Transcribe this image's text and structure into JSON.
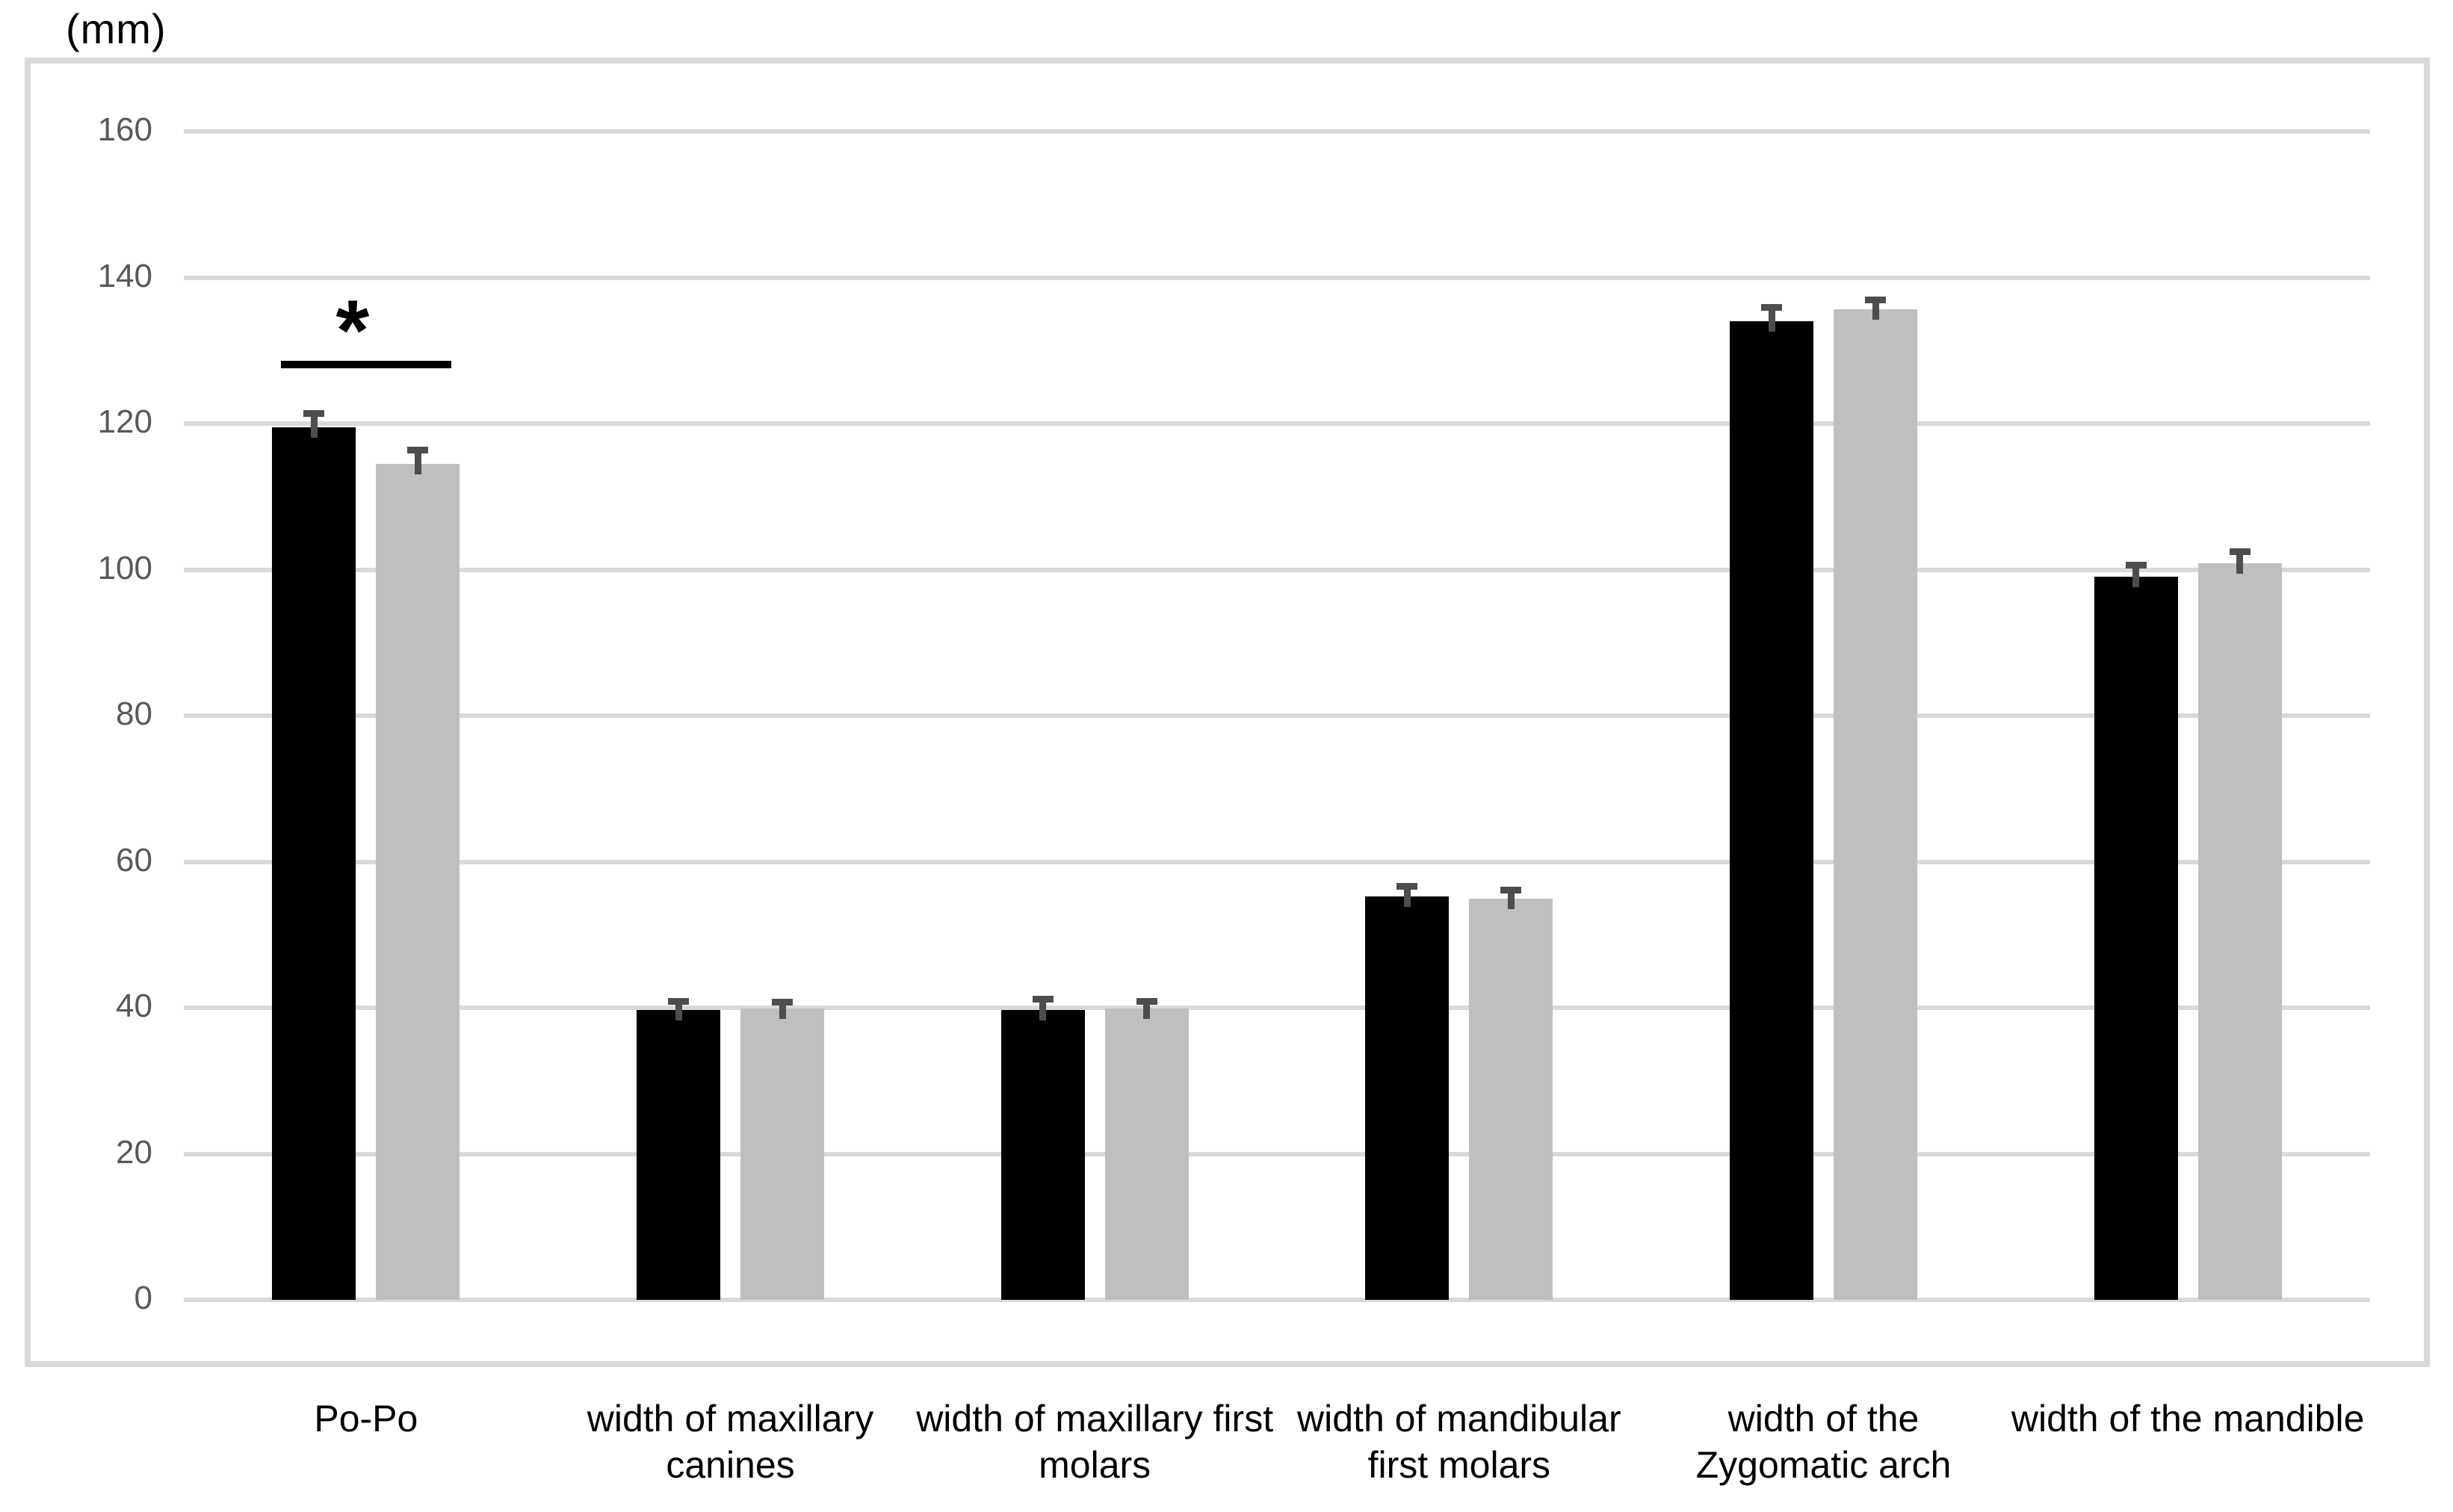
{
  "colors": {
    "black_bar": "#000000",
    "gray_bar": "#BFBFBF",
    "gridline": "#D9D9D9",
    "frame_border": "#D9D9D9",
    "tick_text": "#595959",
    "category_text": "#000000",
    "error_bar": "#4D4D4D",
    "significance": "#000000"
  },
  "chart_data": {
    "type": "bar",
    "title": "",
    "ylabel": "(mm)",
    "xlabel": "",
    "ylim": [
      0,
      160
    ],
    "yticks": [
      0,
      20,
      40,
      60,
      80,
      100,
      120,
      140,
      160
    ],
    "grid": true,
    "legend": "none",
    "error_bars": true,
    "categories": [
      "Po-Po",
      "width of maxillary canines",
      "width of maxillary first molars",
      "width of mandibular first molars",
      "width of the Zygomatic arch",
      "width of the mandible"
    ],
    "series": [
      {
        "name": "black",
        "color": "#000000",
        "values": [
          119.5,
          39.7,
          39.7,
          55.2,
          134.0,
          99.0
        ],
        "errors": [
          1.4,
          0.7,
          1.0,
          1.0,
          1.4,
          1.2
        ]
      },
      {
        "name": "gray",
        "color": "#BFBFBF",
        "values": [
          114.5,
          39.9,
          39.9,
          54.9,
          135.7,
          100.9
        ],
        "errors": [
          1.4,
          0.4,
          0.5,
          0.8,
          0.8,
          1.1
        ]
      }
    ],
    "annotations": [
      {
        "type": "significance",
        "symbol": "*",
        "category": "Po-Po",
        "between_series": [
          "black",
          "gray"
        ]
      }
    ]
  }
}
